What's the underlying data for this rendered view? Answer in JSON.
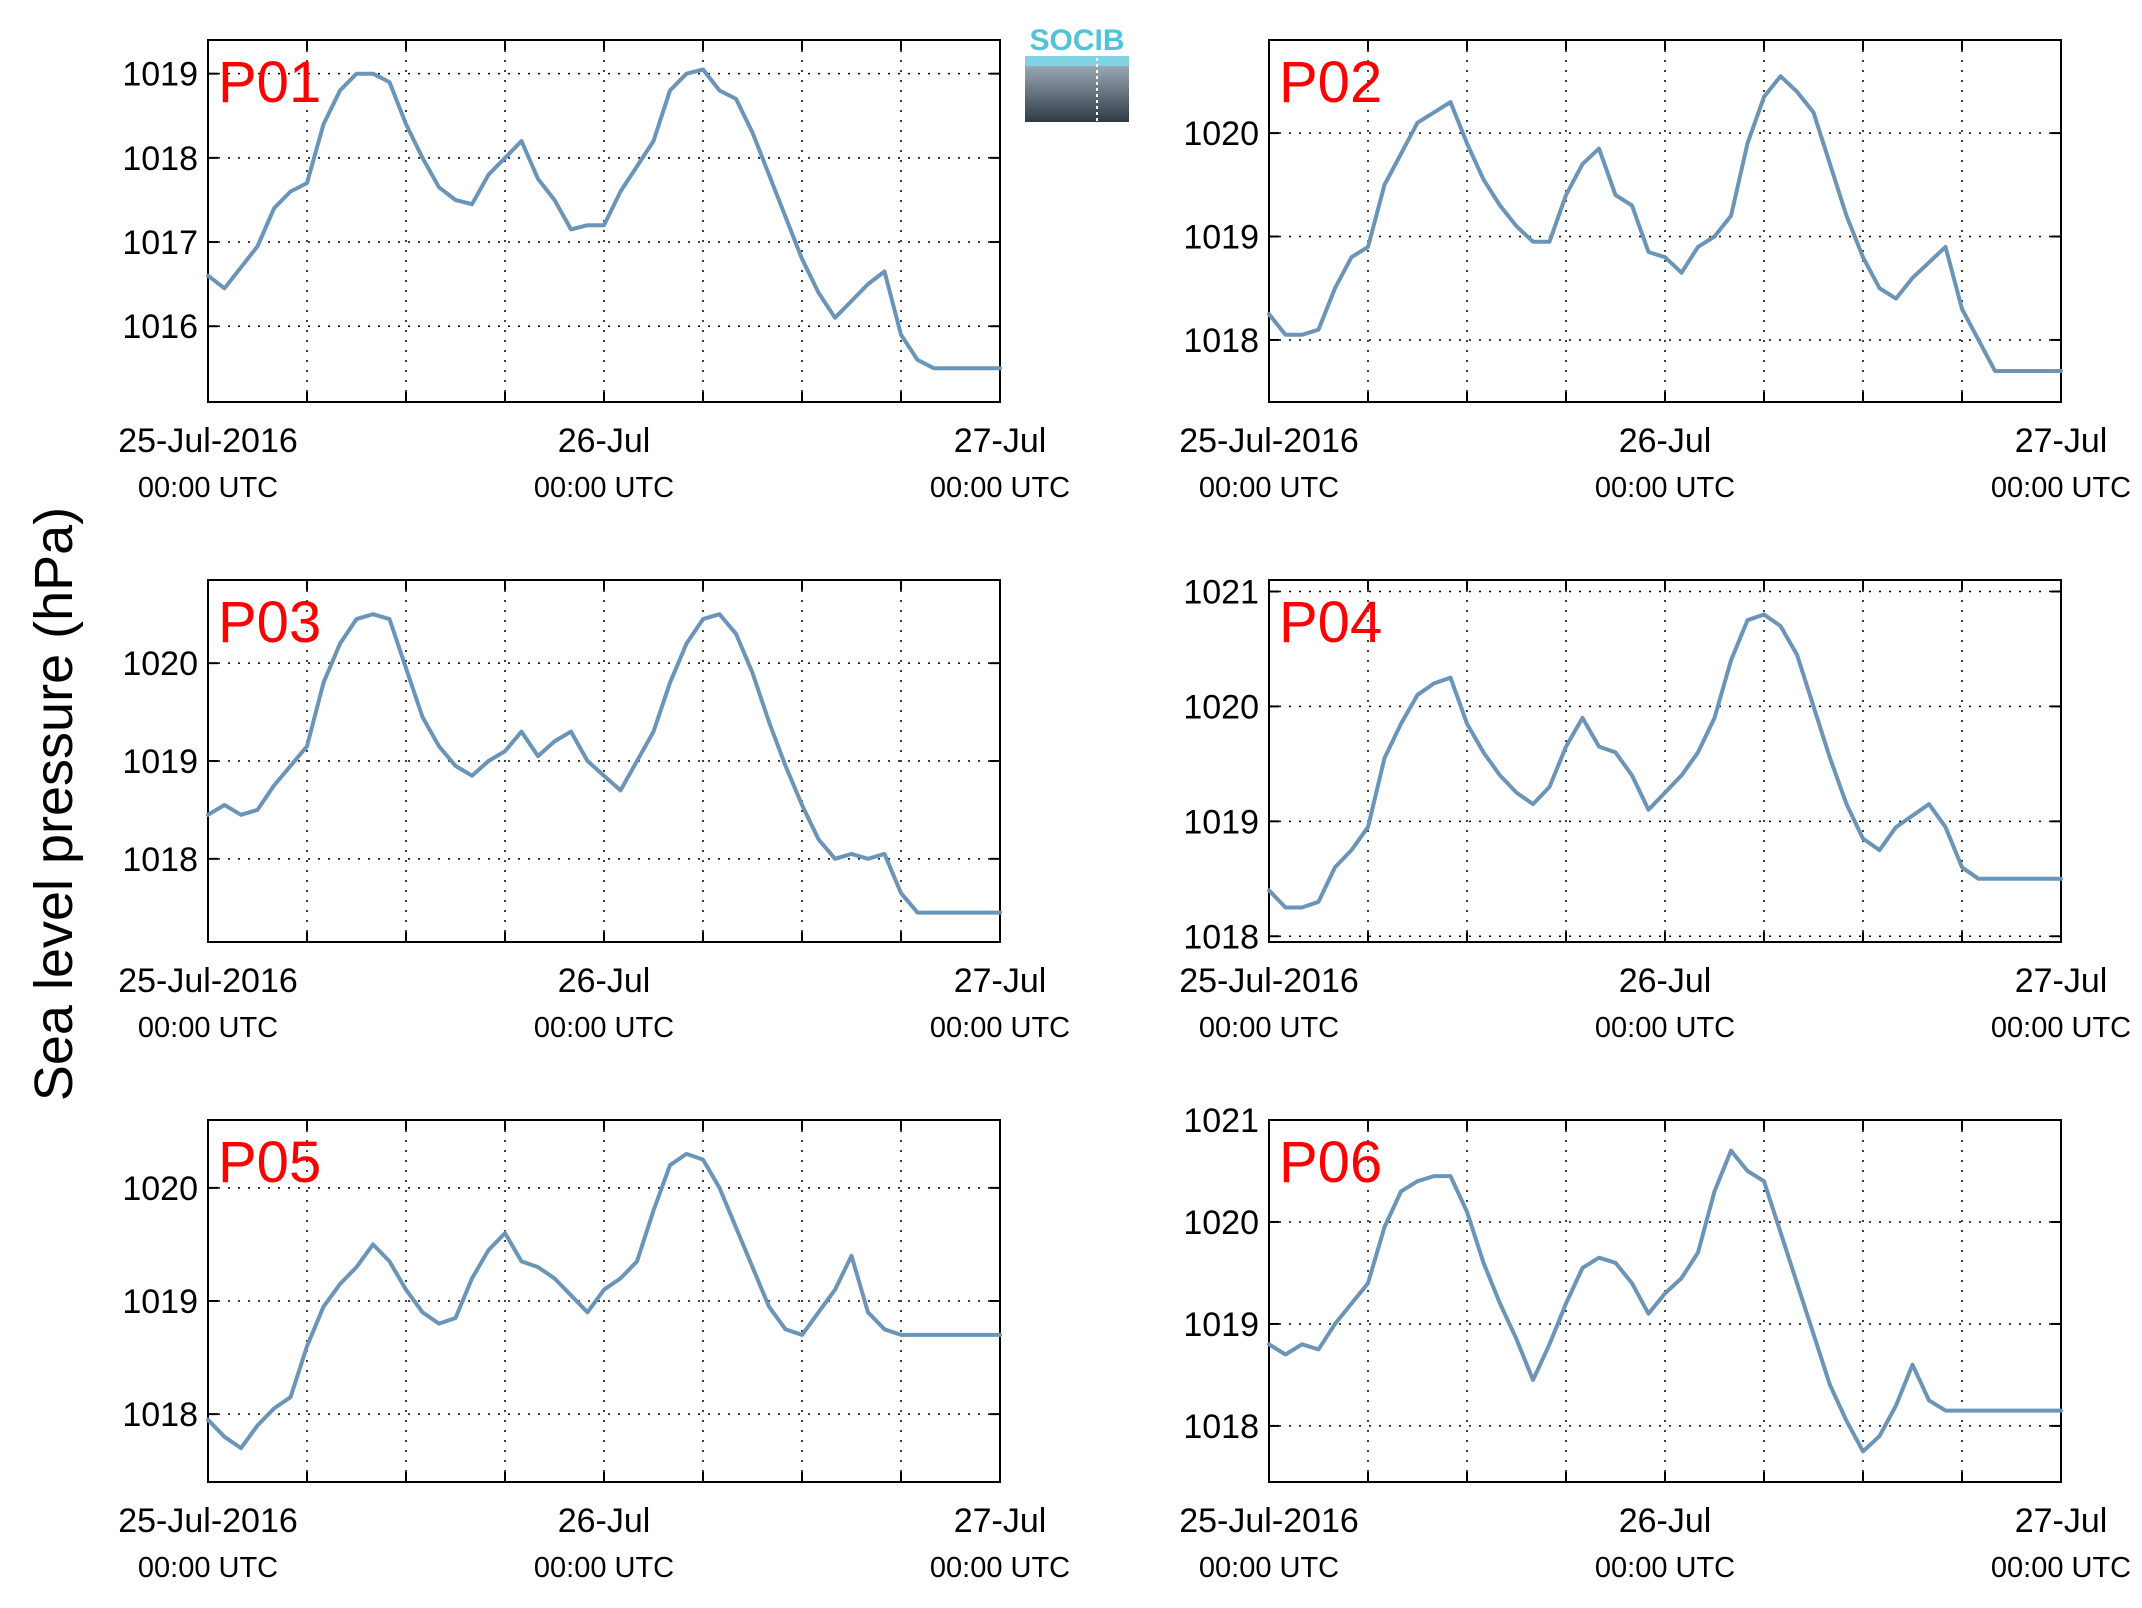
{
  "figure": {
    "ylabel": "Sea level pressure (hPa)",
    "logo_text": "SOCIB",
    "line_color": "#6a95b8",
    "label_color": "#ff0000"
  },
  "chart_data": [
    {
      "type": "line",
      "title": "P01",
      "x_ticks": [
        {
          "date": "25-Jul-2016",
          "time": "00:00 UTC"
        },
        {
          "date": "26-Jul",
          "time": "00:00 UTC"
        },
        {
          "date": "27-Jul",
          "time": "00:00 UTC"
        }
      ],
      "x_range_hours": [
        0,
        48
      ],
      "ylim": [
        1015.1,
        1019.4
      ],
      "y_ticks": [
        1016,
        1017,
        1018,
        1019
      ],
      "grid": true,
      "series": [
        {
          "x": [
            0,
            1,
            2,
            3,
            4,
            5,
            6,
            7,
            8,
            9,
            10,
            11,
            12,
            13,
            14,
            15,
            16,
            17,
            18,
            19,
            20,
            21,
            22,
            23,
            24,
            25,
            26,
            27,
            28,
            29,
            30,
            31,
            32,
            33,
            34,
            35,
            36,
            37,
            38,
            39,
            40,
            41,
            42,
            43,
            44,
            45,
            46,
            47,
            48
          ],
          "values": [
            1016.6,
            1016.45,
            1016.7,
            1016.95,
            1017.4,
            1017.6,
            1017.7,
            1018.4,
            1018.8,
            1019.0,
            1019.0,
            1018.9,
            1018.4,
            1018.0,
            1017.65,
            1017.5,
            1017.45,
            1017.8,
            1018.0,
            1018.2,
            1017.75,
            1017.5,
            1017.15,
            1017.2,
            1017.2,
            1017.6,
            1017.9,
            1018.2,
            1018.8,
            1019.0,
            1019.05,
            1018.8,
            1018.7,
            1018.3,
            1017.8,
            1017.3,
            1016.8,
            1016.4,
            1016.1,
            1016.3,
            1016.5,
            1016.65,
            1015.9,
            1015.6,
            1015.5,
            1015.5,
            1015.5,
            1015.5,
            1015.5
          ]
        }
      ]
    },
    {
      "type": "line",
      "title": "P02",
      "x_ticks": [
        {
          "date": "25-Jul-2016",
          "time": "00:00 UTC"
        },
        {
          "date": "26-Jul",
          "time": "00:00 UTC"
        },
        {
          "date": "27-Jul",
          "time": "00:00 UTC"
        }
      ],
      "x_range_hours": [
        0,
        48
      ],
      "ylim": [
        1017.4,
        1020.9
      ],
      "y_ticks": [
        1018,
        1019,
        1020
      ],
      "grid": true,
      "series": [
        {
          "x": [
            0,
            1,
            2,
            3,
            4,
            5,
            6,
            7,
            8,
            9,
            10,
            11,
            12,
            13,
            14,
            15,
            16,
            17,
            18,
            19,
            20,
            21,
            22,
            23,
            24,
            25,
            26,
            27,
            28,
            29,
            30,
            31,
            32,
            33,
            34,
            35,
            36,
            37,
            38,
            39,
            40,
            41,
            42,
            43,
            44,
            45,
            46,
            47,
            48
          ],
          "values": [
            1018.25,
            1018.05,
            1018.05,
            1018.1,
            1018.5,
            1018.8,
            1018.9,
            1019.5,
            1019.8,
            1020.1,
            1020.2,
            1020.3,
            1019.9,
            1019.55,
            1019.3,
            1019.1,
            1018.95,
            1018.95,
            1019.4,
            1019.7,
            1019.85,
            1019.4,
            1019.3,
            1018.85,
            1018.8,
            1018.65,
            1018.9,
            1019.0,
            1019.2,
            1019.9,
            1020.35,
            1020.55,
            1020.4,
            1020.2,
            1019.7,
            1019.2,
            1018.8,
            1018.5,
            1018.4,
            1018.6,
            1018.75,
            1018.9,
            1018.3,
            1018.0,
            1017.7,
            1017.7,
            1017.7,
            1017.7,
            1017.7
          ]
        }
      ]
    },
    {
      "type": "line",
      "title": "P03",
      "x_ticks": [
        {
          "date": "25-Jul-2016",
          "time": "00:00 UTC"
        },
        {
          "date": "26-Jul",
          "time": "00:00 UTC"
        },
        {
          "date": "27-Jul",
          "time": "00:00 UTC"
        }
      ],
      "x_range_hours": [
        0,
        48
      ],
      "ylim": [
        1017.15,
        1020.85
      ],
      "y_ticks": [
        1018,
        1019,
        1020
      ],
      "grid": true,
      "series": [
        {
          "x": [
            0,
            1,
            2,
            3,
            4,
            5,
            6,
            7,
            8,
            9,
            10,
            11,
            12,
            13,
            14,
            15,
            16,
            17,
            18,
            19,
            20,
            21,
            22,
            23,
            24,
            25,
            26,
            27,
            28,
            29,
            30,
            31,
            32,
            33,
            34,
            35,
            36,
            37,
            38,
            39,
            40,
            41,
            42,
            43,
            44,
            45,
            46,
            47,
            48
          ],
          "values": [
            1018.45,
            1018.55,
            1018.45,
            1018.5,
            1018.75,
            1018.95,
            1019.15,
            1019.8,
            1020.2,
            1020.45,
            1020.5,
            1020.45,
            1019.95,
            1019.45,
            1019.15,
            1018.95,
            1018.85,
            1019.0,
            1019.1,
            1019.3,
            1019.05,
            1019.2,
            1019.3,
            1019.0,
            1018.85,
            1018.7,
            1019.0,
            1019.3,
            1019.8,
            1020.2,
            1020.45,
            1020.5,
            1020.3,
            1019.9,
            1019.4,
            1018.95,
            1018.55,
            1018.2,
            1018.0,
            1018.05,
            1018.0,
            1018.05,
            1017.65,
            1017.45,
            1017.45,
            1017.45,
            1017.45,
            1017.45,
            1017.45
          ]
        }
      ]
    },
    {
      "type": "line",
      "title": "P04",
      "x_ticks": [
        {
          "date": "25-Jul-2016",
          "time": "00:00 UTC"
        },
        {
          "date": "26-Jul",
          "time": "00:00 UTC"
        },
        {
          "date": "27-Jul",
          "time": "00:00 UTC"
        }
      ],
      "x_range_hours": [
        0,
        48
      ],
      "ylim": [
        1017.95,
        1021.1
      ],
      "y_ticks": [
        1018,
        1019,
        1020,
        1021
      ],
      "grid": true,
      "series": [
        {
          "x": [
            0,
            1,
            2,
            3,
            4,
            5,
            6,
            7,
            8,
            9,
            10,
            11,
            12,
            13,
            14,
            15,
            16,
            17,
            18,
            19,
            20,
            21,
            22,
            23,
            24,
            25,
            26,
            27,
            28,
            29,
            30,
            31,
            32,
            33,
            34,
            35,
            36,
            37,
            38,
            39,
            40,
            41,
            42,
            43,
            44,
            45,
            46,
            47,
            48
          ],
          "values": [
            1018.4,
            1018.25,
            1018.25,
            1018.3,
            1018.6,
            1018.75,
            1018.95,
            1019.55,
            1019.85,
            1020.1,
            1020.2,
            1020.25,
            1019.85,
            1019.6,
            1019.4,
            1019.25,
            1019.15,
            1019.3,
            1019.65,
            1019.9,
            1019.65,
            1019.6,
            1019.4,
            1019.1,
            1019.25,
            1019.4,
            1019.6,
            1019.9,
            1020.4,
            1020.75,
            1020.8,
            1020.7,
            1020.45,
            1020.0,
            1019.55,
            1019.15,
            1018.85,
            1018.75,
            1018.95,
            1019.05,
            1019.15,
            1018.95,
            1018.6,
            1018.5,
            1018.5,
            1018.5,
            1018.5,
            1018.5,
            1018.5
          ]
        }
      ]
    },
    {
      "type": "line",
      "title": "P05",
      "x_ticks": [
        {
          "date": "25-Jul-2016",
          "time": "00:00 UTC"
        },
        {
          "date": "26-Jul",
          "time": "00:00 UTC"
        },
        {
          "date": "27-Jul",
          "time": "00:00 UTC"
        }
      ],
      "x_range_hours": [
        0,
        48
      ],
      "ylim": [
        1017.4,
        1020.6
      ],
      "y_ticks": [
        1018,
        1019,
        1020
      ],
      "grid": true,
      "series": [
        {
          "x": [
            0,
            1,
            2,
            3,
            4,
            5,
            6,
            7,
            8,
            9,
            10,
            11,
            12,
            13,
            14,
            15,
            16,
            17,
            18,
            19,
            20,
            21,
            22,
            23,
            24,
            25,
            26,
            27,
            28,
            29,
            30,
            31,
            32,
            33,
            34,
            35,
            36,
            37,
            38,
            39,
            40,
            41,
            42,
            43,
            44,
            45,
            46,
            47,
            48
          ],
          "values": [
            1017.95,
            1017.8,
            1017.7,
            1017.9,
            1018.05,
            1018.15,
            1018.6,
            1018.95,
            1019.15,
            1019.3,
            1019.5,
            1019.35,
            1019.1,
            1018.9,
            1018.8,
            1018.85,
            1019.2,
            1019.45,
            1019.6,
            1019.35,
            1019.3,
            1019.2,
            1019.05,
            1018.9,
            1019.1,
            1019.2,
            1019.35,
            1019.8,
            1020.2,
            1020.3,
            1020.25,
            1020.0,
            1019.65,
            1019.3,
            1018.95,
            1018.75,
            1018.7,
            1018.9,
            1019.1,
            1019.4,
            1018.9,
            1018.75,
            1018.7,
            1018.7,
            1018.7,
            1018.7,
            1018.7,
            1018.7,
            1018.7
          ]
        }
      ]
    },
    {
      "type": "line",
      "title": "P06",
      "x_ticks": [
        {
          "date": "25-Jul-2016",
          "time": "00:00 UTC"
        },
        {
          "date": "26-Jul",
          "time": "00:00 UTC"
        },
        {
          "date": "27-Jul",
          "time": "00:00 UTC"
        }
      ],
      "x_range_hours": [
        0,
        48
      ],
      "ylim": [
        1017.45,
        1021.0
      ],
      "y_ticks": [
        1018,
        1019,
        1020,
        1021
      ],
      "grid": true,
      "series": [
        {
          "x": [
            0,
            1,
            2,
            3,
            4,
            5,
            6,
            7,
            8,
            9,
            10,
            11,
            12,
            13,
            14,
            15,
            16,
            17,
            18,
            19,
            20,
            21,
            22,
            23,
            24,
            25,
            26,
            27,
            28,
            29,
            30,
            31,
            32,
            33,
            34,
            35,
            36,
            37,
            38,
            39,
            40,
            41,
            42,
            43,
            44,
            45,
            46,
            47,
            48
          ],
          "values": [
            1018.8,
            1018.7,
            1018.8,
            1018.75,
            1019.0,
            1019.2,
            1019.4,
            1019.95,
            1020.3,
            1020.4,
            1020.45,
            1020.45,
            1020.1,
            1019.6,
            1019.2,
            1018.85,
            1018.45,
            1018.8,
            1019.2,
            1019.55,
            1019.65,
            1019.6,
            1019.4,
            1019.1,
            1019.3,
            1019.45,
            1019.7,
            1020.3,
            1020.7,
            1020.5,
            1020.4,
            1019.9,
            1019.4,
            1018.9,
            1018.4,
            1018.05,
            1017.75,
            1017.9,
            1018.2,
            1018.6,
            1018.25,
            1018.15,
            1018.15,
            1018.15,
            1018.15,
            1018.15,
            1018.15,
            1018.15,
            1018.15
          ]
        }
      ]
    }
  ]
}
